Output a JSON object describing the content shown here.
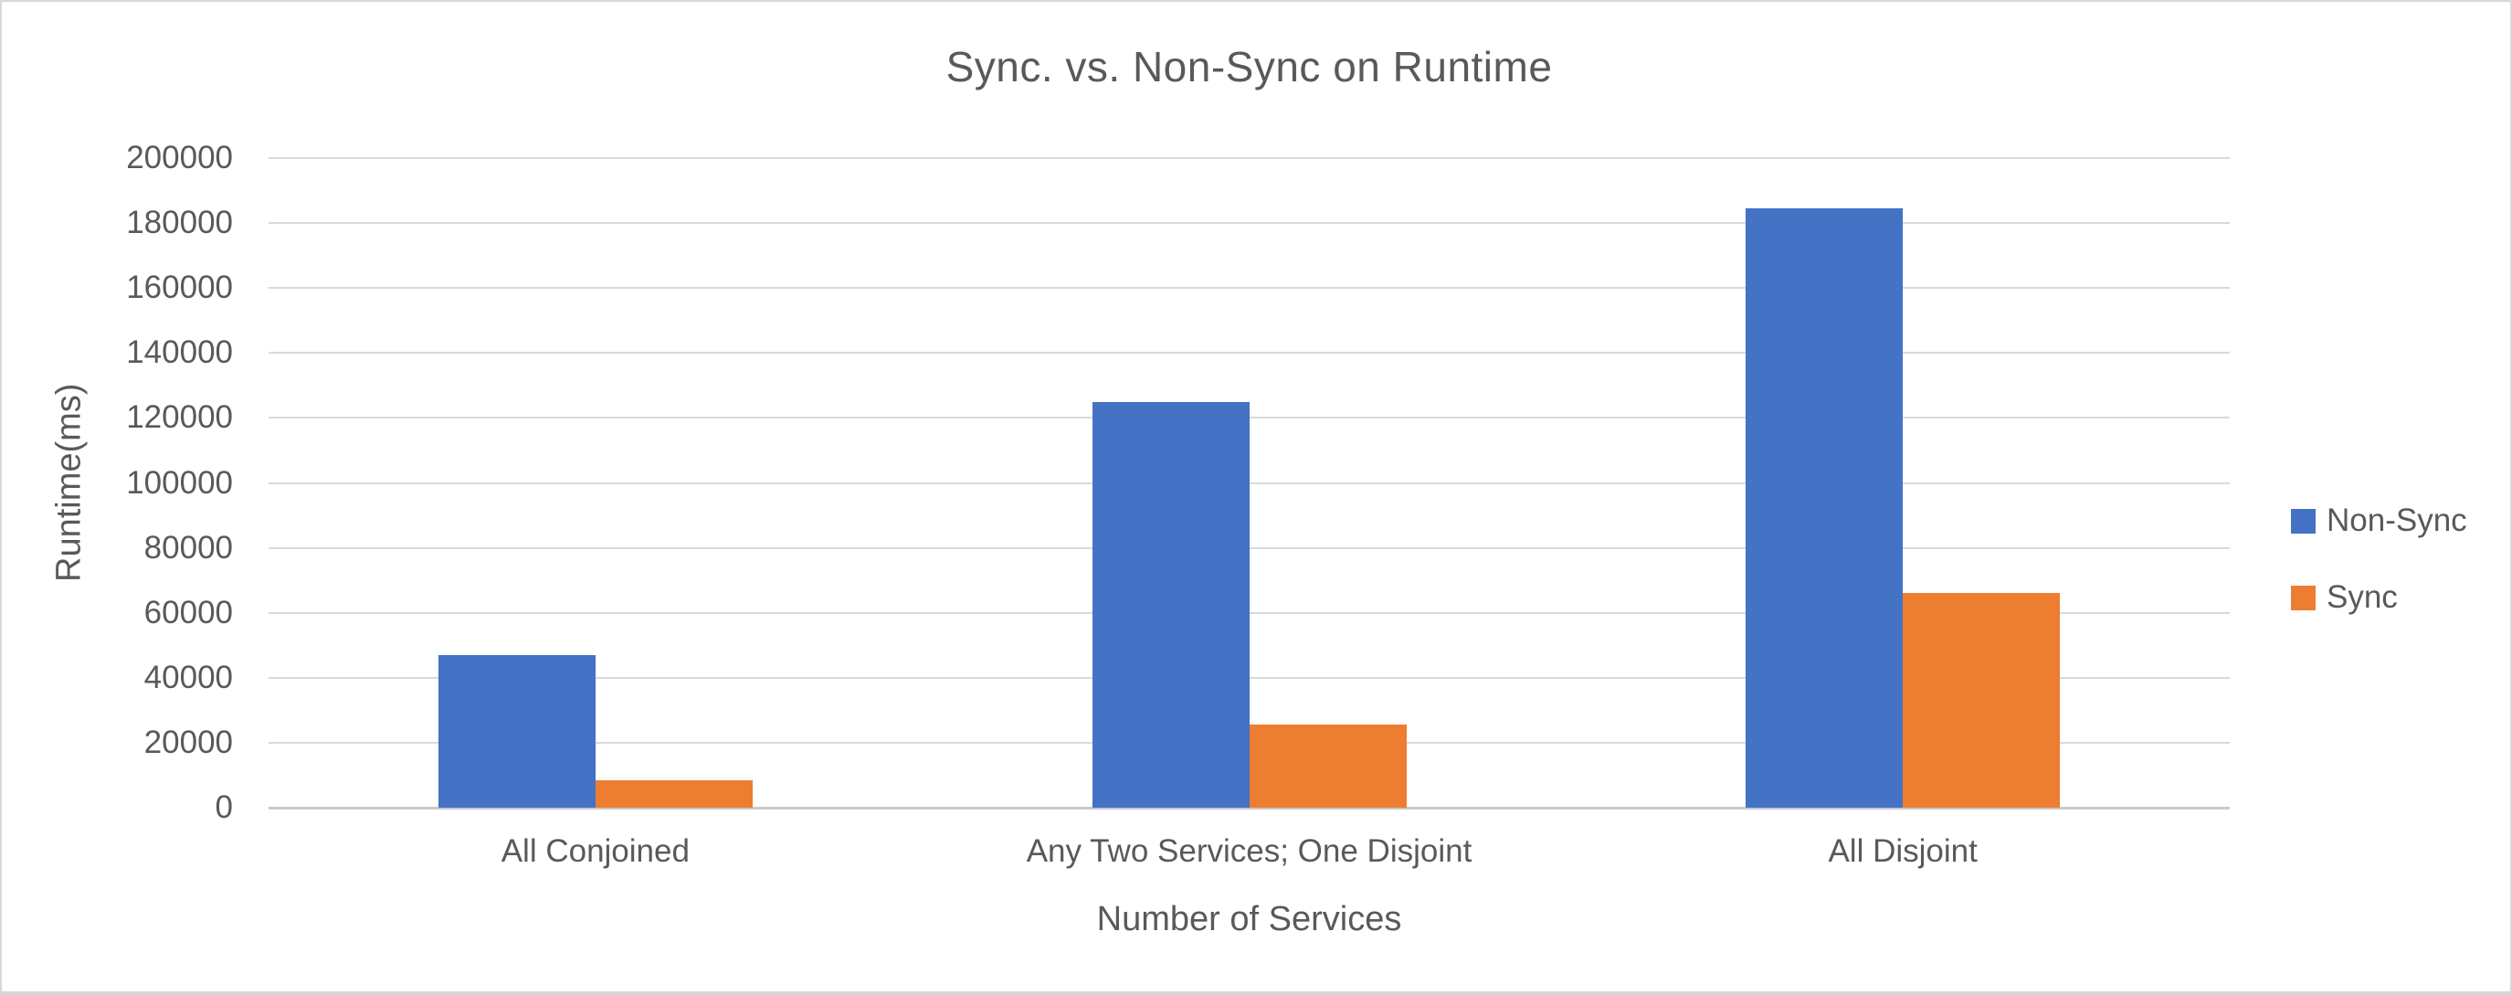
{
  "page": {
    "background": "#ffffff",
    "frame_color": "#d8d8d8"
  },
  "chart_data": {
    "type": "bar",
    "title": "Sync. vs. Non-Sync on Runtime",
    "xlabel": "Number of Services",
    "ylabel": "Runtime(ms)",
    "categories": [
      "All Conjoined",
      "Any Two Services; One Disjoint",
      "All Disjoint"
    ],
    "series": [
      {
        "name": "Non-Sync",
        "color": "#4472C4",
        "values": [
          47000,
          125000,
          184500
        ]
      },
      {
        "name": "Sync",
        "color": "#ED7D31",
        "values": [
          8500,
          25500,
          66000
        ]
      }
    ],
    "ylim": [
      0,
      200000
    ],
    "y_tick_step": 20000,
    "y_ticks": [
      0,
      20000,
      40000,
      60000,
      80000,
      100000,
      120000,
      140000,
      160000,
      180000,
      200000
    ],
    "grid": true,
    "gridline_color": "#d9d9d9",
    "zero_line_color": "#c9c9c9",
    "text_color": "#595959",
    "legend_position": "right",
    "legend_entries": [
      "Non-Sync",
      "Sync"
    ]
  }
}
